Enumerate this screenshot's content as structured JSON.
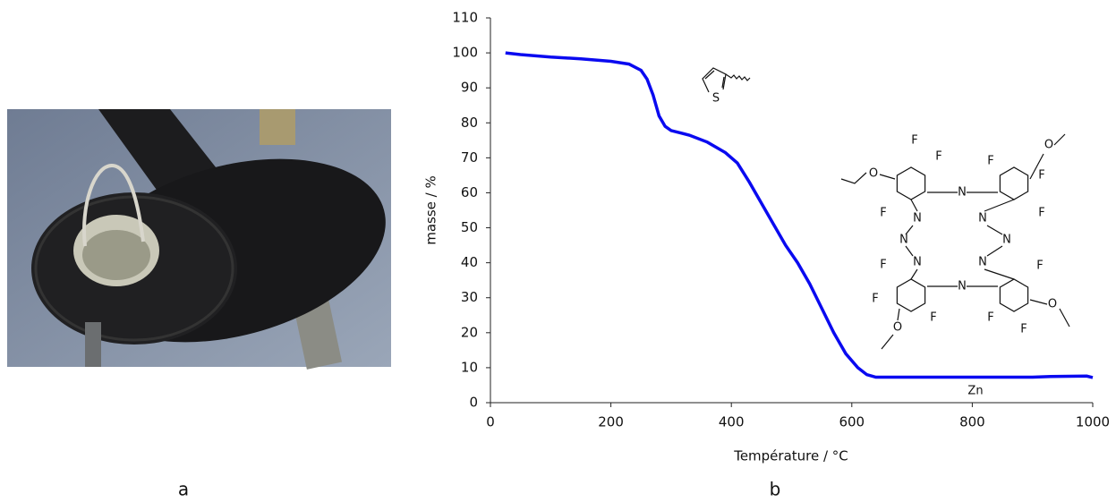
{
  "panel_labels": [
    "a",
    "b"
  ],
  "chart_data": {
    "type": "line",
    "xlabel": "Température / °C",
    "ylabel": "masse / %",
    "x": [
      25,
      50,
      100,
      150,
      200,
      230,
      250,
      260,
      270,
      280,
      290,
      300,
      330,
      360,
      390,
      410,
      430,
      450,
      470,
      490,
      510,
      530,
      550,
      570,
      590,
      610,
      625,
      640,
      700,
      800,
      900,
      930,
      990,
      1000
    ],
    "values": [
      100,
      99.5,
      98.8,
      98.3,
      97.6,
      96.8,
      95,
      92.5,
      88,
      82,
      79,
      77.8,
      76.5,
      74.5,
      71.5,
      68.5,
      63,
      57,
      51,
      45,
      40,
      34,
      27,
      20,
      14,
      10,
      8,
      7.3,
      7.3,
      7.3,
      7.3,
      7.5,
      7.6,
      7.2
    ],
    "color": "#0a0af0",
    "xlim": [
      0,
      1000
    ],
    "xticks": [
      0,
      200,
      400,
      600,
      800,
      1000
    ],
    "ylim": [
      0,
      110
    ],
    "yticks": [
      0,
      10,
      20,
      30,
      40,
      50,
      60,
      70,
      80,
      90,
      100,
      110
    ],
    "grid": false
  },
  "structures": {
    "thiophene": [
      "S"
    ],
    "phthalocyanine": [
      "F",
      "F",
      "F",
      "O",
      "F",
      "F",
      "F",
      "O",
      "F",
      "F",
      "F",
      "O",
      "F",
      "F",
      "F",
      "O",
      "N",
      "N",
      "N",
      "N",
      "N",
      "N",
      "N",
      "N",
      "Zn"
    ]
  }
}
